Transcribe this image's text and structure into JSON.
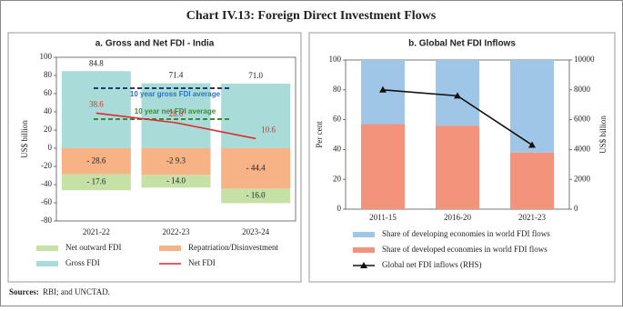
{
  "title": "Chart IV.13: Foreign Direct Investment Flows",
  "source": {
    "label": "Sources:",
    "text": "RBI; and UNCTAD."
  },
  "chart_data": [
    {
      "type": "combo",
      "title": "a. Gross and Net FDI - India",
      "ylabel": "US$ billion",
      "categories": [
        "2021-22",
        "2022-23",
        "2023-24"
      ],
      "ylim": [
        -80,
        100
      ],
      "yticks": [
        -80,
        -60,
        -40,
        -20,
        0,
        20,
        40,
        60,
        80,
        100
      ],
      "grid": false,
      "series": [
        {
          "name": "Gross FDI",
          "kind": "bar",
          "color": "#a9dcd8",
          "values": [
            84.8,
            71.4,
            71.0
          ],
          "value_labels": [
            "84.8",
            "71.4",
            "71.0"
          ]
        },
        {
          "name": "Repatriation/Disinvestment",
          "kind": "bar",
          "color": "#f7b285",
          "values": [
            -28.6,
            -29.3,
            -44.4
          ],
          "value_labels": [
            "- 28.6",
            "-2 9.3",
            "- 44.4"
          ]
        },
        {
          "name": "Net outward FDI",
          "kind": "bar",
          "color": "#c6e1a6",
          "values": [
            -17.6,
            -14.0,
            -16.0
          ],
          "value_labels": [
            "- 17.6",
            "- 14.0",
            "- 16.0"
          ]
        },
        {
          "name": "Net FDI",
          "kind": "line",
          "color": "#e3262b",
          "values": [
            38.6,
            28.0,
            10.6
          ],
          "value_labels": [
            "38.6",
            "28.0",
            "10.6"
          ]
        }
      ],
      "reference_lines": [
        {
          "name": "10 year gross FDI average",
          "value": 66,
          "color": "#1f3a7a",
          "label_color": "#2e74c0"
        },
        {
          "name": "10 year net FDI average",
          "value": 32,
          "color": "#3d8b2f",
          "label_color": "#3d8b2f"
        }
      ]
    },
    {
      "type": "combo",
      "title": "b. Global Net FDI Inflows",
      "ylabel": "Per cent",
      "y2label": "US$ billion",
      "categories": [
        "2011-15",
        "2016-20",
        "2021-23"
      ],
      "ylim": [
        0,
        100
      ],
      "yticks": [
        0,
        20,
        40,
        60,
        80,
        100
      ],
      "y2lim": [
        0,
        10000
      ],
      "y2ticks": [
        0,
        2000,
        4000,
        6000,
        8000,
        10000
      ],
      "grid": false,
      "series": [
        {
          "name": "Share of developed economies in world FDI flows",
          "kind": "bar",
          "color": "#f4937b",
          "values": [
            57,
            56,
            38
          ]
        },
        {
          "name": "Share of developing economies in world FDI flows",
          "kind": "bar",
          "color": "#9fc6e6",
          "values": [
            43,
            44,
            62
          ]
        },
        {
          "name": "Global net FDI inflows (RHS)",
          "kind": "line",
          "axis": "y2",
          "marker": "triangle",
          "color": "#111111",
          "values": [
            8000,
            7600,
            4300
          ]
        }
      ]
    }
  ]
}
